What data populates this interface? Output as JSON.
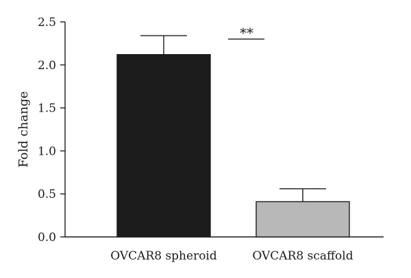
{
  "chart_data": {
    "type": "bar",
    "categories": [
      "OVCAR8 spheroid",
      "OVCAR8 scaffold"
    ],
    "values": [
      2.12,
      0.41
    ],
    "errors": [
      0.22,
      0.15
    ],
    "colors": [
      "#1c1c1c",
      "#b8b8b8"
    ],
    "ylabel": "Fold change",
    "ylim": [
      0,
      2.5
    ],
    "yticks": [
      "0.0",
      "0.5",
      "1.0",
      "1.5",
      "2.0",
      "2.5"
    ],
    "grid": false,
    "annotation": {
      "text": "**",
      "y": 2.38
    }
  }
}
